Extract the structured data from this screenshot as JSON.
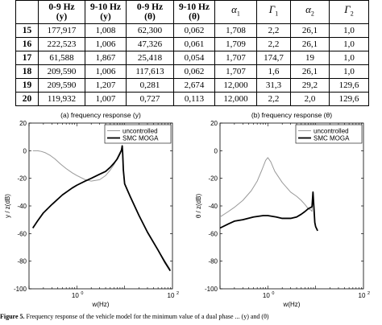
{
  "table": {
    "headers": [
      {
        "line1": "",
        "line2": ""
      },
      {
        "line1": "0-9 Hz",
        "line2": "(y)"
      },
      {
        "line1": "9-10 Hz",
        "line2": "(y)"
      },
      {
        "line1": "0-9 Hz",
        "line2": "(θ)"
      },
      {
        "line1": "9-10 Hz",
        "line2": "(θ)"
      },
      {
        "greek": "α",
        "sub": "1"
      },
      {
        "greek": "Γ",
        "sub": "1"
      },
      {
        "greek": "α",
        "sub": "2"
      },
      {
        "greek": "Γ",
        "sub": "2"
      }
    ],
    "rows": [
      [
        "15",
        "177,917",
        "1,008",
        "62,300",
        "0,062",
        "1,708",
        "2,2",
        "26,1",
        "1,0"
      ],
      [
        "16",
        "222,523",
        "1,006",
        "47,326",
        "0,061",
        "1,709",
        "2,2",
        "26,1",
        "1,0"
      ],
      [
        "17",
        "61,588",
        "1,867",
        "25,418",
        "0,054",
        "1,707",
        "174,7",
        "19",
        "1,0"
      ],
      [
        "18",
        "209,590",
        "1,006",
        "117,613",
        "0,062",
        "1,707",
        "1,6",
        "26,1",
        "1,0"
      ],
      [
        "19",
        "209,590",
        "1,207",
        "0,281",
        "2,674",
        "12,000",
        "31,3",
        "29,2",
        "129,6"
      ],
      [
        "20",
        "119,932",
        "1,007",
        "0,727",
        "0,113",
        "12,000",
        "2,2",
        "2,0",
        "129,6"
      ]
    ]
  },
  "chart_data": [
    {
      "type": "line",
      "title": "(a) frequency response (y)",
      "xlabel": "w(Hz)",
      "ylabel": "y / z(dB)",
      "xscale": "log",
      "xlim": [
        0.1,
        100
      ],
      "ylim": [
        -100,
        20
      ],
      "xtick_labels": [
        {
          "base": "10",
          "exp": "0"
        },
        {
          "base": "10",
          "exp": "2"
        }
      ],
      "ytick_labels": [
        "20",
        "0",
        "-20",
        "-40",
        "-60",
        "-80",
        "-100"
      ],
      "legend_position": "top-right",
      "series": [
        {
          "name": "uncontrolled",
          "color": "#999999",
          "width": 1,
          "points": [
            [
              0.12,
              0
            ],
            [
              0.15,
              0
            ],
            [
              0.18,
              -0.5
            ],
            [
              0.22,
              -1.5
            ],
            [
              0.28,
              -3.5
            ],
            [
              0.35,
              -6
            ],
            [
              0.45,
              -9.5
            ],
            [
              0.6,
              -13
            ],
            [
              0.8,
              -16
            ],
            [
              1,
              -18
            ],
            [
              1.5,
              -21
            ],
            [
              2,
              -22
            ],
            [
              3,
              -21
            ],
            [
              4,
              -18
            ],
            [
              5,
              -14
            ],
            [
              6,
              -10
            ],
            [
              7,
              -5
            ],
            [
              8,
              -1
            ],
            [
              8.6,
              0
            ],
            [
              8.9,
              3.5
            ],
            [
              9.1,
              -3
            ],
            [
              9.4,
              -14
            ],
            [
              10,
              -24
            ],
            [
              13,
              -33
            ],
            [
              20,
              -47
            ],
            [
              30,
              -59
            ],
            [
              50,
              -72
            ],
            [
              70,
              -80
            ],
            [
              90,
              -86
            ]
          ]
        },
        {
          "name": "SMC MOGA",
          "color": "#000000",
          "width": 1.8,
          "points": [
            [
              0.12,
              -56
            ],
            [
              0.15,
              -51
            ],
            [
              0.2,
              -45
            ],
            [
              0.3,
              -39
            ],
            [
              0.5,
              -32
            ],
            [
              0.8,
              -27
            ],
            [
              1,
              -25
            ],
            [
              1.5,
              -22
            ],
            [
              2,
              -20
            ],
            [
              3,
              -17
            ],
            [
              4,
              -15
            ],
            [
              5,
              -12
            ],
            [
              6,
              -9
            ],
            [
              7,
              -6
            ],
            [
              8,
              -2
            ],
            [
              8.6,
              0.5
            ],
            [
              8.9,
              3.5
            ],
            [
              9.1,
              -2
            ],
            [
              9.4,
              -14
            ],
            [
              10,
              -24
            ],
            [
              13,
              -33
            ],
            [
              20,
              -47
            ],
            [
              30,
              -59
            ],
            [
              50,
              -72
            ],
            [
              70,
              -81
            ],
            [
              90,
              -87
            ]
          ]
        }
      ]
    },
    {
      "type": "line",
      "title": "(b) frequency response (θ)",
      "xlabel": "w(Hz)",
      "ylabel": "θ / z(dB)",
      "xscale": "log",
      "xlim": [
        0.1,
        100
      ],
      "ylim": [
        -100,
        20
      ],
      "xtick_labels": [
        {
          "base": "10",
          "exp": "0"
        },
        {
          "base": "10",
          "exp": "2"
        }
      ],
      "ytick_labels": [
        "20",
        "0",
        "-20",
        "-40",
        "-60",
        "-80",
        "-100"
      ],
      "legend_position": "top-right",
      "series": [
        {
          "name": "uncontrolled",
          "color": "#999999",
          "width": 1,
          "points": [
            [
              0.1,
              -48
            ],
            [
              0.15,
              -44
            ],
            [
              0.2,
              -41
            ],
            [
              0.3,
              -36
            ],
            [
              0.45,
              -29
            ],
            [
              0.6,
              -22
            ],
            [
              0.75,
              -14
            ],
            [
              0.9,
              -7
            ],
            [
              1,
              -5
            ],
            [
              1.15,
              -8
            ],
            [
              1.4,
              -15
            ],
            [
              2,
              -23
            ],
            [
              3,
              -30
            ],
            [
              4,
              -33
            ],
            [
              5,
              -36
            ],
            [
              6,
              -39
            ],
            [
              7,
              -42
            ],
            [
              8,
              -43
            ],
            [
              8.4,
              -44
            ],
            [
              8.8,
              -30
            ],
            [
              9.2,
              -42
            ],
            [
              9.6,
              -52
            ],
            [
              10,
              -55
            ],
            [
              11,
              -58
            ]
          ]
        },
        {
          "name": "SMC MOGA",
          "color": "#000000",
          "width": 1.8,
          "points": [
            [
              0.1,
              -56
            ],
            [
              0.15,
              -53
            ],
            [
              0.2,
              -51
            ],
            [
              0.3,
              -50
            ],
            [
              0.5,
              -48
            ],
            [
              0.8,
              -47
            ],
            [
              1,
              -47
            ],
            [
              1.5,
              -48
            ],
            [
              2,
              -49
            ],
            [
              3,
              -49
            ],
            [
              4,
              -48
            ],
            [
              5,
              -46
            ],
            [
              6,
              -44
            ],
            [
              7,
              -42
            ],
            [
              8,
              -41
            ],
            [
              8.4,
              -40.5
            ],
            [
              8.8,
              -30
            ],
            [
              9.2,
              -41
            ],
            [
              9.6,
              -52
            ],
            [
              10,
              -55
            ],
            [
              11,
              -58
            ]
          ]
        }
      ]
    }
  ],
  "caption": {
    "label": "Figure 5.",
    "text": "Frequency response of the vehicle model for the minimum value of a dual phase ... (y) and (θ)"
  }
}
